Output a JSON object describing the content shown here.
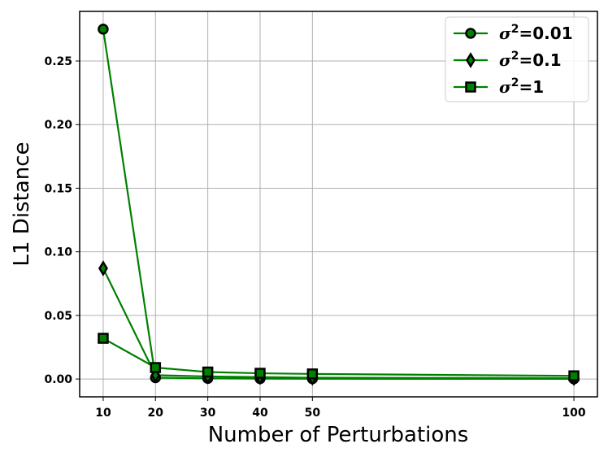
{
  "chart_data": {
    "type": "line",
    "xlabel": "Number of Perturbations",
    "ylabel": "L1 Distance",
    "x": [
      10,
      20,
      30,
      40,
      50,
      100
    ],
    "x_ticks": [
      "10",
      "20",
      "30",
      "40",
      "50",
      "100"
    ],
    "y_ticks": [
      "0.00",
      "0.05",
      "0.10",
      "0.15",
      "0.20",
      "0.25"
    ],
    "y_tick_values": [
      0.0,
      0.05,
      0.1,
      0.15,
      0.2,
      0.25
    ],
    "xlim": [
      5.5,
      104.5
    ],
    "ylim": [
      -0.014,
      0.289
    ],
    "grid": true,
    "legend_position": "top-right",
    "colors": {
      "line": "#008000",
      "marker_edge": "#000000",
      "marker_fill": "#008000"
    },
    "series": [
      {
        "name_symbol": "σ",
        "name_exp": "2",
        "name_rest": "=0.01",
        "marker": "circle",
        "values": [
          0.275,
          0.001,
          0.0005,
          0.0003,
          0.0002,
          0.0001
        ]
      },
      {
        "name_symbol": "σ",
        "name_exp": "2",
        "name_rest": "=0.1",
        "marker": "diamond",
        "values": [
          0.087,
          0.003,
          0.002,
          0.0015,
          0.001,
          0.0007
        ]
      },
      {
        "name_symbol": "σ",
        "name_exp": "2",
        "name_rest": "=1",
        "marker": "square",
        "values": [
          0.032,
          0.009,
          0.0055,
          0.0045,
          0.004,
          0.0025
        ]
      }
    ]
  }
}
